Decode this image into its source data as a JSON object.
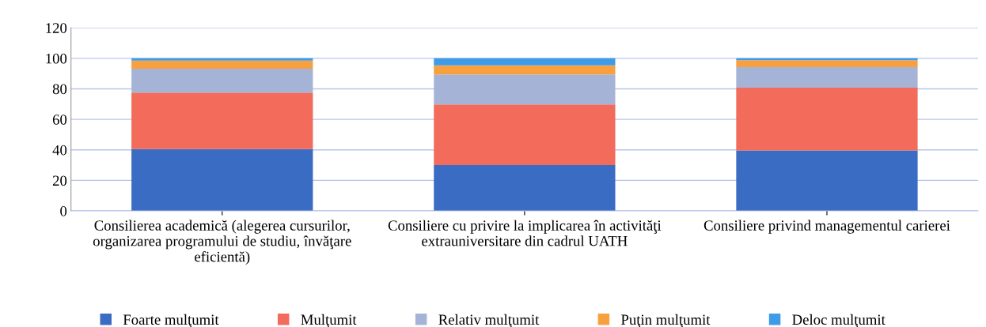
{
  "chart_data": {
    "type": "bar",
    "stacked": true,
    "categories": [
      "Consilierea academică (alegerea cursurilor, organizarea programului de studiu, învăţare eficientă)",
      "Consiliere cu privire la implicarea în activităţi extrauniversitare din cadrul UATH",
      "Consiliere privind managementul carierei"
    ],
    "series": [
      {
        "name": "Foarte mulţumit",
        "color": "#3a6cc4",
        "values": [
          40.5,
          30.0,
          39.6
        ]
      },
      {
        "name": "Mulţumit",
        "color": "#f26b5b",
        "values": [
          37.0,
          39.8,
          41.1
        ]
      },
      {
        "name": "Relativ mulţumit",
        "color": "#a5b4d6",
        "values": [
          15.7,
          19.6,
          13.5
        ]
      },
      {
        "name": "Puţin mulţumit",
        "color": "#f8a040",
        "values": [
          5.3,
          6.0,
          4.6
        ]
      },
      {
        "name": "Deloc mulţumit",
        "color": "#3e9be8",
        "values": [
          1.5,
          4.6,
          1.2
        ]
      }
    ],
    "ylim": [
      0,
      120
    ],
    "yticks": [
      0,
      20,
      40,
      60,
      80,
      100,
      120
    ],
    "grid": "y",
    "legend": "bottom"
  }
}
